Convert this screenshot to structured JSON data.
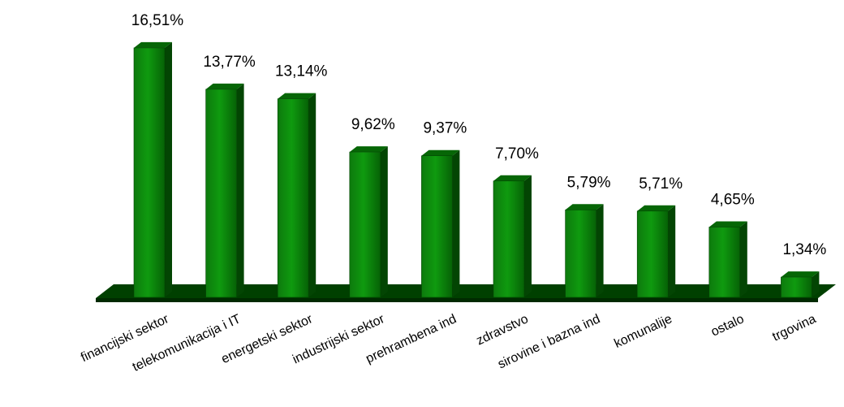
{
  "chart_data": {
    "type": "bar",
    "style": "3d-column",
    "categories": [
      "financijski sektor",
      "telekomunikacija i IT",
      "energetski sektor",
      "industrijski sektor",
      "prehrambena ind",
      "zdravstvo",
      "sirovine i bazna ind",
      "komunalije",
      "ostalo",
      "trgovina"
    ],
    "values": [
      16.51,
      13.77,
      13.14,
      9.62,
      9.37,
      7.7,
      5.79,
      5.71,
      4.65,
      1.34
    ],
    "value_labels": [
      "16,51%",
      "13,77%",
      "13,14%",
      "9,62%",
      "9,37%",
      "7,70%",
      "5,79%",
      "5,71%",
      "4,65%",
      "1,34%"
    ],
    "title": "",
    "xlabel": "",
    "ylabel": "",
    "grid": false,
    "legend": "none",
    "colors": {
      "bar_front": "#0a8a0a",
      "bar_top": "#066606",
      "bar_side": "#034503",
      "floor": "#004000"
    }
  }
}
